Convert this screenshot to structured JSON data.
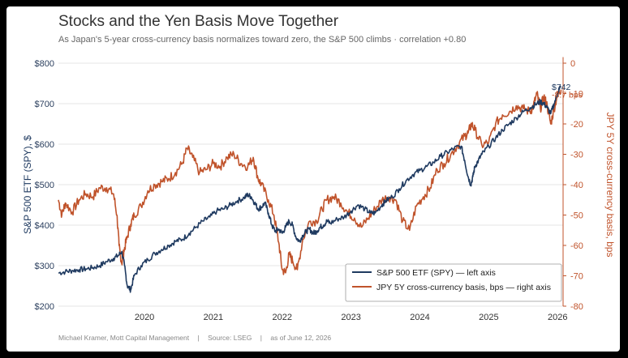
{
  "header": {
    "title": "Stocks and the Yen Basis Move Together",
    "subtitle": "As Japan's 5-year cross-currency basis normalizes toward zero, the S&P 500 climbs  ·  correlation +0.80"
  },
  "footer": {
    "author": "Michael Kramer, Mott Capital Management",
    "source": "Source: LSEG",
    "asof": "as of June 12, 2026",
    "separator": "|"
  },
  "colors": {
    "spy": "#1f3a60",
    "basis": "#c0532b",
    "grid": "#e6e6e6"
  },
  "chart_data": {
    "type": "line",
    "x_ticks": [
      "2020",
      "2021",
      "2022",
      "2023",
      "2024",
      "2025",
      "2026"
    ],
    "x_range": [
      2019.25,
      2026.58
    ],
    "y_left": {
      "label": "S&P 500 ETF (SPY), $",
      "range": [
        200,
        800
      ],
      "ticks": [
        {
          "v": 200,
          "label": "$200"
        },
        {
          "v": 300,
          "label": "$300"
        },
        {
          "v": 400,
          "label": "$400"
        },
        {
          "v": 500,
          "label": "$500"
        },
        {
          "v": 600,
          "label": "$600"
        },
        {
          "v": 700,
          "label": "$700"
        },
        {
          "v": 800,
          "label": "$800"
        }
      ]
    },
    "y_right": {
      "label": "JPY 5Y cross-currency basis, bps",
      "range": [
        -80,
        0
      ],
      "ticks": [
        {
          "v": 0,
          "label": "0"
        },
        {
          "v": -10,
          "label": "-10"
        },
        {
          "v": -20,
          "label": "-20"
        },
        {
          "v": -30,
          "label": "-30"
        },
        {
          "v": -40,
          "label": "-40"
        },
        {
          "v": -50,
          "label": "-50"
        },
        {
          "v": -60,
          "label": "-60"
        },
        {
          "v": -70,
          "label": "-70"
        },
        {
          "v": -80,
          "label": "-80"
        }
      ]
    },
    "series": [
      {
        "name": "S&P 500 ETF (SPY)",
        "legend": "S&P 500 ETF (SPY)  —  left axis",
        "axis": "left",
        "end_label": "$742",
        "x": [
          2019.25,
          2019.35,
          2019.45,
          2019.55,
          2019.65,
          2019.75,
          2019.85,
          2019.95,
          2020.05,
          2020.12,
          2020.17,
          2020.21,
          2020.25,
          2020.3,
          2020.35,
          2020.45,
          2020.55,
          2020.65,
          2020.75,
          2020.85,
          2020.95,
          2021.05,
          2021.15,
          2021.25,
          2021.35,
          2021.45,
          2021.55,
          2021.65,
          2021.75,
          2021.85,
          2021.95,
          2022.0,
          2022.05,
          2022.1,
          2022.15,
          2022.2,
          2022.25,
          2022.3,
          2022.35,
          2022.4,
          2022.45,
          2022.5,
          2022.55,
          2022.6,
          2022.65,
          2022.7,
          2022.75,
          2022.8,
          2022.85,
          2022.9,
          2022.95,
          2023.0,
          2023.05,
          2023.1,
          2023.15,
          2023.2,
          2023.3,
          2023.4,
          2023.5,
          2023.6,
          2023.7,
          2023.78,
          2023.85,
          2023.95,
          2024.0,
          2024.1,
          2024.2,
          2024.3,
          2024.4,
          2024.5,
          2024.6,
          2024.7,
          2024.8,
          2024.9,
          2025.0,
          2025.1,
          2025.15,
          2025.2,
          2025.24,
          2025.27,
          2025.3,
          2025.35,
          2025.4,
          2025.5,
          2025.6,
          2025.7,
          2025.8,
          2025.9,
          2026.0,
          2026.1,
          2026.18,
          2026.25,
          2026.3,
          2026.35,
          2026.4,
          2026.45,
          2026.5,
          2026.55
        ],
        "y": [
          282,
          285,
          288,
          290,
          292,
          295,
          300,
          310,
          318,
          325,
          335,
          300,
          250,
          240,
          275,
          300,
          315,
          330,
          340,
          350,
          360,
          365,
          380,
          395,
          410,
          420,
          435,
          440,
          450,
          460,
          468,
          475,
          470,
          455,
          440,
          445,
          455,
          430,
          400,
          385,
          390,
          380,
          395,
          410,
          400,
          370,
          360,
          375,
          385,
          390,
          380,
          385,
          395,
          400,
          410,
          405,
          415,
          420,
          435,
          450,
          440,
          430,
          430,
          450,
          460,
          470,
          490,
          510,
          525,
          535,
          545,
          555,
          570,
          580,
          590,
          595,
          560,
          520,
          500,
          520,
          545,
          560,
          575,
          595,
          615,
          635,
          650,
          665,
          680,
          690,
          698,
          705,
          700,
          690,
          675,
          700,
          725,
          742
        ]
      },
      {
        "name": "JPY 5Y cross-currency basis, bps",
        "legend": "JPY 5Y cross-currency basis, bps  —  right axis",
        "axis": "right",
        "end_label": "-8.7 bps",
        "x": [
          2019.25,
          2019.3,
          2019.35,
          2019.45,
          2019.55,
          2019.65,
          2019.75,
          2019.85,
          2019.95,
          2020.05,
          2020.1,
          2020.13,
          2020.17,
          2020.2,
          2020.24,
          2020.3,
          2020.35,
          2020.45,
          2020.55,
          2020.65,
          2020.75,
          2020.85,
          2020.95,
          2021.05,
          2021.12,
          2021.2,
          2021.3,
          2021.4,
          2021.5,
          2021.6,
          2021.7,
          2021.8,
          2021.9,
          2022.0,
          2022.08,
          2022.15,
          2022.2,
          2022.3,
          2022.38,
          2022.45,
          2022.5,
          2022.55,
          2022.6,
          2022.65,
          2022.72,
          2022.8,
          2022.9,
          2023.0,
          2023.08,
          2023.15,
          2023.25,
          2023.35,
          2023.45,
          2023.55,
          2023.65,
          2023.75,
          2023.85,
          2023.95,
          2024.05,
          2024.15,
          2024.25,
          2024.35,
          2024.45,
          2024.55,
          2024.65,
          2024.75,
          2024.85,
          2024.95,
          2025.05,
          2025.15,
          2025.2,
          2025.25,
          2025.3,
          2025.4,
          2025.5,
          2025.6,
          2025.7,
          2025.8,
          2025.9,
          2026.0,
          2026.1,
          2026.15,
          2026.2,
          2026.25,
          2026.3,
          2026.35,
          2026.4,
          2026.45,
          2026.5,
          2026.55
        ],
        "y": [
          -45,
          -50,
          -46,
          -49,
          -45,
          -43,
          -44,
          -41,
          -41,
          -43,
          -50,
          -60,
          -66,
          -62,
          -58,
          -53,
          -50,
          -47,
          -42,
          -40,
          -39,
          -38,
          -36,
          -33,
          -28,
          -31,
          -36,
          -35,
          -33,
          -34,
          -31,
          -30,
          -33,
          -34,
          -31,
          -38,
          -40,
          -45,
          -50,
          -59,
          -68,
          -69,
          -63,
          -65,
          -68,
          -58,
          -52,
          -52,
          -48,
          -45,
          -44,
          -46,
          -49,
          -51,
          -54,
          -51,
          -48,
          -45,
          -44,
          -45,
          -52,
          -55,
          -47,
          -44,
          -41,
          -35,
          -33,
          -30,
          -27,
          -24,
          -23,
          -20,
          -22,
          -27,
          -26,
          -20,
          -17,
          -16,
          -14,
          -15,
          -16,
          -14,
          -10,
          -15,
          -11,
          -14,
          -20,
          -15,
          -10,
          -8.7
        ]
      }
    ]
  }
}
